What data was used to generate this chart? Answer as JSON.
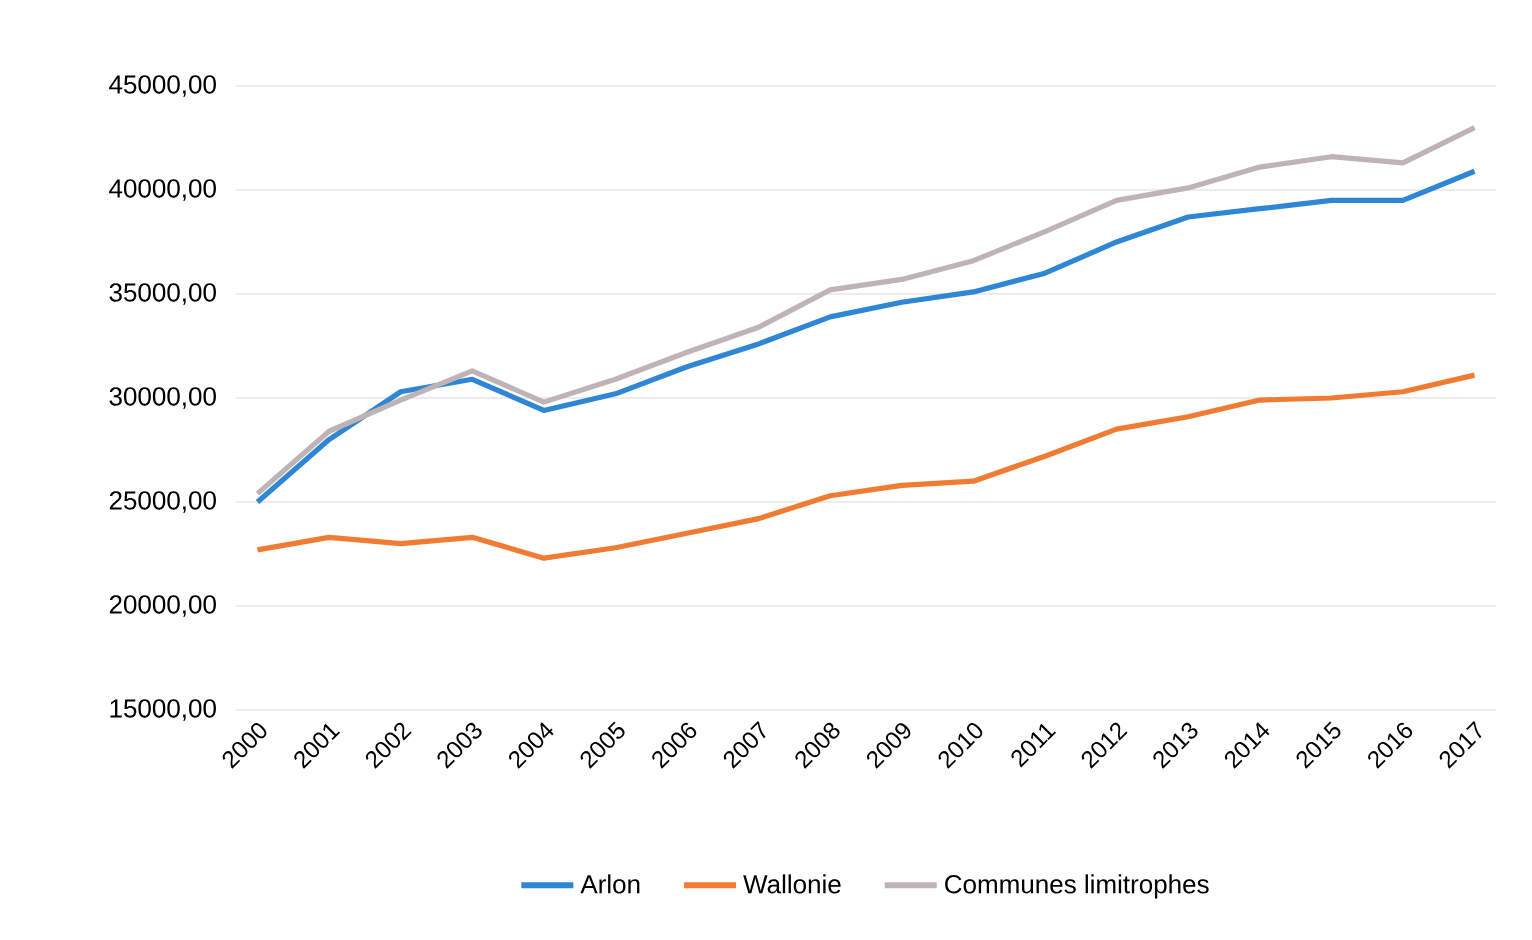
{
  "chart_data": {
    "type": "line",
    "categories": [
      "2000",
      "2001",
      "2002",
      "2003",
      "2004",
      "2005",
      "2006",
      "2007",
      "2008",
      "2009",
      "2010",
      "2011",
      "2012",
      "2013",
      "2014",
      "2015",
      "2016",
      "2017"
    ],
    "series": [
      {
        "name": "Arlon",
        "color": "#2e86d4",
        "values": [
          25000,
          28000,
          30300,
          30900,
          29400,
          30200,
          31500,
          32600,
          33900,
          34600,
          35100,
          36000,
          37500,
          38700,
          39100,
          39500,
          39500,
          40900
        ]
      },
      {
        "name": "Wallonie",
        "color": "#f07c34",
        "values": [
          22700,
          23300,
          23000,
          23300,
          22300,
          22800,
          23500,
          24200,
          25300,
          25800,
          26000,
          27200,
          28500,
          29100,
          29900,
          30000,
          30300,
          31100
        ]
      },
      {
        "name": "Communes limitrophes",
        "color": "#c0b3b6",
        "values": [
          25400,
          28400,
          29900,
          31300,
          29800,
          30900,
          32200,
          33400,
          35200,
          35700,
          36600,
          38000,
          39500,
          40100,
          41100,
          41600,
          41300,
          43000
        ]
      }
    ],
    "ylim": [
      15000,
      45000
    ],
    "yticks": [
      {
        "value": 15000,
        "label": "15000,00"
      },
      {
        "value": 20000,
        "label": "20000,00"
      },
      {
        "value": 25000,
        "label": "25000,00"
      },
      {
        "value": 30000,
        "label": "30000,00"
      },
      {
        "value": 35000,
        "label": "35000,00"
      },
      {
        "value": 40000,
        "label": "40000,00"
      },
      {
        "value": 45000,
        "label": "45000,00"
      }
    ],
    "grid": "y",
    "legend": "bottom",
    "marker": "none",
    "line_style": "solid"
  }
}
